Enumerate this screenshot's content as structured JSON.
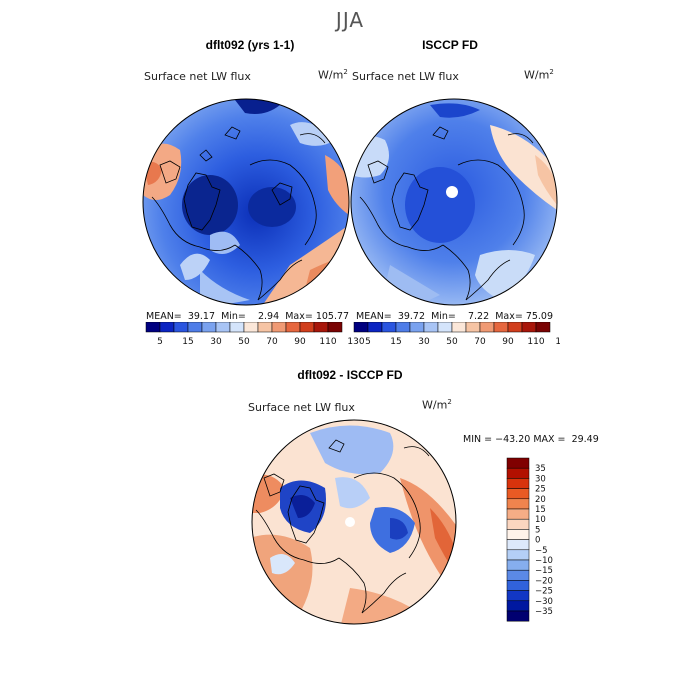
{
  "figure": {
    "season": "JJA"
  },
  "panels": {
    "model": {
      "title": "dflt092 (yrs 1-1)",
      "label": "Surface net LW flux",
      "units": "W/m",
      "units_exp": "2",
      "stats_mean_label": "MEAN=",
      "stats_mean": "39.17",
      "stats_min_label": "Min=",
      "stats_min": "2.94",
      "stats_max_label": "Max=",
      "stats_max": "105.77"
    },
    "obs": {
      "title": "ISCCP FD",
      "label": "Surface net LW flux",
      "units": "W/m",
      "units_exp": "2",
      "stats_mean_label": "MEAN=",
      "stats_mean": "39.72",
      "stats_min_label": "Min=",
      "stats_min": "7.22",
      "stats_max_label": "Max=",
      "stats_max": "75.09"
    },
    "diff": {
      "title": "dflt092 - ISCCP FD",
      "label": "Surface net LW flux",
      "units": "W/m",
      "units_exp": "2",
      "stats_min_label": "MIN =",
      "stats_min": "−43.20",
      "stats_max_label": "MAX =",
      "stats_max": "29.49"
    }
  },
  "colorbars": {
    "top": {
      "tick_labels": [
        "5",
        "15",
        "30",
        "50",
        "70",
        "90",
        "110",
        "130"
      ],
      "colors": [
        "#000080",
        "#0b24c2",
        "#2a55e0",
        "#4f7de8",
        "#7aa2ef",
        "#a8c4f5",
        "#d4e4fb",
        "#fbe7d9",
        "#f6c4a4",
        "#f09a74",
        "#e6673f",
        "#d13e1c",
        "#a8160a",
        "#7a0303"
      ]
    },
    "diff": {
      "tick_labels": [
        "35",
        "30",
        "25",
        "20",
        "15",
        "10",
        "5",
        "0",
        "−5",
        "−10",
        "−15",
        "−20",
        "−25",
        "−30",
        "−35"
      ],
      "colors": [
        "#800000",
        "#b21000",
        "#d8330c",
        "#e95a24",
        "#f0844e",
        "#f6ad86",
        "#fbd6c0",
        "#fff3ea",
        "#dde9fb",
        "#b4cff6",
        "#86aeee",
        "#5b89e6",
        "#3162db",
        "#1237c4",
        "#0018a0",
        "#000070"
      ]
    }
  }
}
